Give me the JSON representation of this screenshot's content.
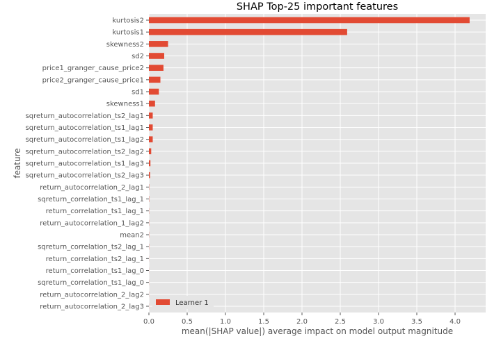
{
  "chart_data": {
    "type": "bar",
    "orientation": "horizontal",
    "title": "SHAP Top-25 important features",
    "xlabel": "mean(|SHAP value|) average impact on model output magnitude",
    "ylabel": "feature",
    "xlim": [
      0,
      4.4
    ],
    "xticks": [
      0.0,
      0.5,
      1.0,
      1.5,
      2.0,
      2.5,
      3.0,
      3.5,
      4.0
    ],
    "xtick_labels": [
      "0.0",
      "0.5",
      "1.0",
      "1.5",
      "2.0",
      "2.5",
      "3.0",
      "3.5",
      "4.0"
    ],
    "grid": true,
    "legend_position": "lower-left",
    "categories": [
      "kurtosis2",
      "kurtosis1",
      "skewness2",
      "sd2",
      "price1_granger_cause_price2",
      "price2_granger_cause_price1",
      "sd1",
      "skewness1",
      "sqreturn_autocorrelation_ts2_lag1",
      "sqreturn_autocorrelation_ts1_lag1",
      "sqreturn_autocorrelation_ts1_lag2",
      "sqreturn_autocorrelation_ts2_lag2",
      "sqreturn_autocorrelation_ts1_lag3",
      "sqreturn_autocorrelation_ts2_lag3",
      "return_autocorrelation_2_lag1",
      "sqreturn_correlation_ts1_lag_1",
      "return_correlation_ts1_lag_1",
      "return_autocorrelation_1_lag2",
      "mean2",
      "sqreturn_correlation_ts2_lag_1",
      "return_correlation_ts2_lag_1",
      "return_correlation_ts1_lag_0",
      "sqreturn_correlation_ts1_lag_0",
      "return_autocorrelation_2_lag2",
      "return_autocorrelation_2_lag3"
    ],
    "series": [
      {
        "name": "Learner 1",
        "color": "#e24a33",
        "values": [
          4.19,
          2.59,
          0.25,
          0.2,
          0.19,
          0.15,
          0.13,
          0.08,
          0.05,
          0.05,
          0.05,
          0.03,
          0.02,
          0.015,
          0.003,
          0.003,
          0.002,
          0.002,
          0.002,
          0.002,
          0.001,
          0.001,
          0.001,
          0.001,
          0.001
        ]
      }
    ]
  },
  "colors": {
    "plot_background": "#e5e5e5",
    "grid": "#ffffff",
    "bar": "#e24a33"
  }
}
